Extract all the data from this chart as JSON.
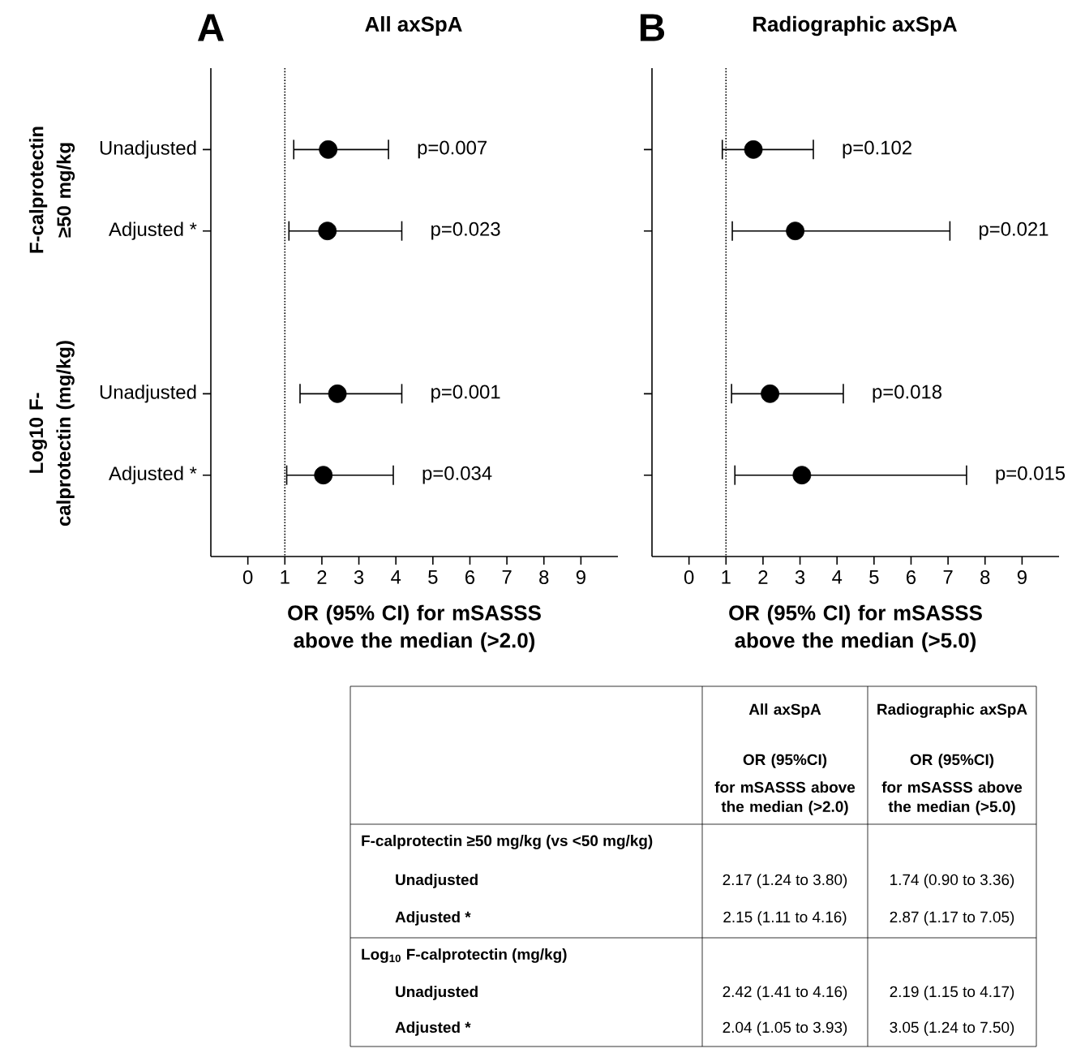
{
  "chart_data": [
    {
      "type": "scatter",
      "orientation": "horizontal",
      "title": "All axSpA",
      "xlabel": "OR (95% CI) for mSASSS above the median (>2.0)",
      "categories": [
        "Unadjusted",
        "Adjusted *",
        null,
        "Unadjusted",
        "Adjusted *"
      ],
      "values": [
        2.17,
        2.15,
        null,
        2.42,
        2.04
      ],
      "errors": [
        [
          1.24,
          3.8
        ],
        [
          1.11,
          4.16
        ],
        null,
        [
          1.41,
          4.16
        ],
        [
          1.05,
          3.93
        ]
      ],
      "color": "#000000",
      "xlim": [
        -1,
        10
      ],
      "xticks": [
        0,
        1,
        2,
        3,
        4,
        5,
        6,
        7,
        8,
        9
      ],
      "ref_lines": [
        {
          "axis": "x",
          "value": 1,
          "line_style": "dotted"
        }
      ],
      "annotations": [
        "A",
        "F-calprotectin ≥50 mg/kg",
        "Log10 F-calprotectin (mg/kg)",
        "p=0.007",
        "p=0.023",
        "p=0.001",
        "p=0.034"
      ]
    },
    {
      "type": "scatter",
      "orientation": "horizontal",
      "title": "Radiographic axSpA",
      "xlabel": "OR (95% CI) for mSASSS above the median (>5.0)",
      "categories": [
        null,
        null,
        null,
        null,
        null
      ],
      "values": [
        1.74,
        2.87,
        null,
        2.19,
        3.05
      ],
      "errors": [
        [
          0.9,
          3.36
        ],
        [
          1.17,
          7.05
        ],
        null,
        [
          1.15,
          4.17
        ],
        [
          1.24,
          7.5
        ]
      ],
      "color": "#000000",
      "tick_labels": "x",
      "xlim": [
        -1,
        10
      ],
      "xticks": [
        0,
        1,
        2,
        3,
        4,
        5,
        6,
        7,
        8,
        9
      ],
      "ref_lines": [
        {
          "axis": "x",
          "value": 1,
          "line_style": "dotted"
        }
      ],
      "annotations": [
        "B",
        "p=0.102",
        "p=0.021",
        "p=0.018",
        "p=0.015"
      ]
    },
    {
      "type": "other",
      "annotations": [
        "All axSpA",
        "OR (95%CI)",
        "for mSASSS above the median (>2.0)",
        "Radiographic axSpA",
        "OR (95%CI)",
        "for mSASSS above the median (>5.0)",
        "F-calprotectin ≥50 mg/kg (vs <50 mg/kg)",
        "Unadjusted",
        "2.17 (1.24 to 3.80)",
        "1.74 (0.90 to 3.36)",
        "Adjusted *",
        "2.15 (1.11 to 4.16)",
        "2.87 (1.17 to 7.05)",
        "Log$_{10}$ F-calprotectin (mg/kg)",
        "Unadjusted",
        "2.42 (1.41 to 4.16)",
        "2.19 (1.15 to 4.17)",
        "Adjusted *",
        "2.04 (1.05 to 3.93)",
        "3.05 (1.24 to 7.50)"
      ]
    }
  ]
}
